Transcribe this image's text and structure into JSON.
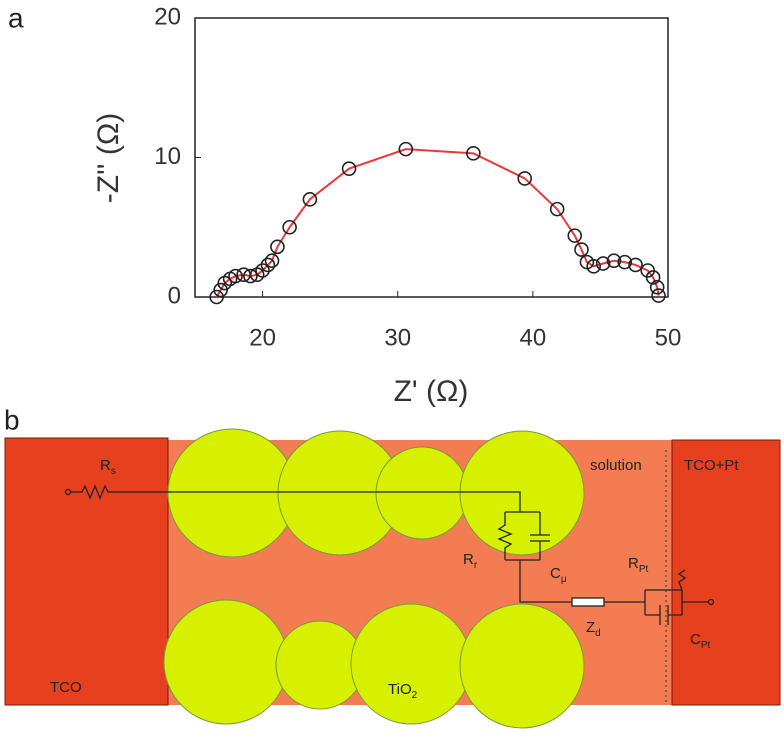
{
  "panel_labels": [
    "a",
    "b"
  ],
  "chart_data": {
    "type": "scatter",
    "xlabel": "Z' (Ω)",
    "ylabel": "-Z'' (Ω)",
    "x": [
      16.6,
      16.9,
      17.2,
      17.6,
      18.0,
      18.6,
      19.1,
      19.6,
      20.0,
      20.4,
      20.7,
      21.1,
      22.0,
      23.5,
      26.4,
      30.6,
      35.6,
      39.4,
      41.8,
      43.1,
      43.6,
      44.0,
      44.5,
      45.2,
      46.0,
      46.8,
      47.6,
      48.5,
      48.9,
      49.2,
      49.3
    ],
    "values": [
      0,
      0.5,
      1.0,
      1.3,
      1.5,
      1.6,
      1.5,
      1.6,
      1.9,
      2.3,
      2.6,
      3.6,
      5.0,
      7.0,
      9.2,
      10.6,
      10.3,
      8.5,
      6.3,
      4.4,
      3.4,
      2.5,
      2.2,
      2.4,
      2.6,
      2.5,
      2.3,
      1.9,
      1.4,
      0.7,
      0.1
    ],
    "marker_color": "#222222",
    "line_color": "#e8393a",
    "xlim": [
      15,
      50
    ],
    "xticks": [
      20,
      30,
      40,
      50
    ],
    "ylim": [
      0,
      20
    ],
    "yticks": [
      0,
      10,
      20
    ]
  },
  "diagram": {
    "electrodes": [
      "TCO",
      "TCO+Pt"
    ],
    "medium": "solution",
    "particles": {
      "main": "TiO",
      "sub": "2"
    },
    "components": [
      {
        "main": "R",
        "sub": "s"
      },
      {
        "main": "R",
        "sub": "r"
      },
      {
        "main": "C",
        "sub": "μ"
      },
      {
        "main": "Z",
        "sub": "d"
      },
      {
        "main": "R",
        "sub": "Pt"
      },
      {
        "main": "C",
        "sub": "Pt"
      }
    ]
  }
}
